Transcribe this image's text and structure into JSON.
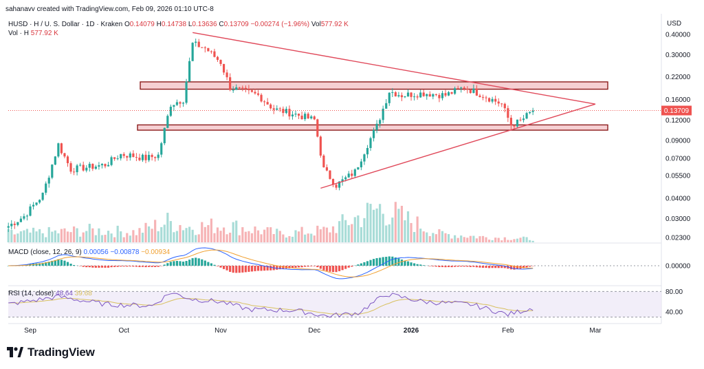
{
  "header": {
    "credit": "sahanavv created with TradingView.com, Feb 09, 2026 01:10 UTC-8",
    "symbol": "HUSD · H / U. S. Dollar · 1D · Kraken",
    "o_label": "O",
    "o_value": "0.14079",
    "h_label": "H",
    "h_value": "0.14738",
    "l_label": "L",
    "l_value": "0.13636",
    "c_label": "C",
    "c_value": "0.13709",
    "change": "−0.00274 (−1.96%)",
    "vol_label": "Vol",
    "vol_value": "577.92 K",
    "vol_h_label": "Vol · H",
    "vol_h_value": "577.92 K"
  },
  "macd": {
    "label": "MACD (close, 12, 26, 9)",
    "v1": "0.00056",
    "v2": "−0.00878",
    "v3": "−0.00934",
    "tick": "0.00000",
    "colors": {
      "macd": "#2962ff",
      "signal": "#f0a030",
      "hist_up": "#26a69a",
      "hist_down": "#ef5350"
    }
  },
  "rsi": {
    "label": "RSI (14, close)",
    "v1": "48.64",
    "v2": "39.68",
    "ticks": [
      "80.00",
      "40.00"
    ],
    "colors": {
      "rsi": "#7e57c2",
      "ma": "#d8c060"
    }
  },
  "logo": {
    "text": "TradingView",
    "icon": "tradingview-logo-icon"
  },
  "colors": {
    "up": "#26a69a",
    "down": "#ef5350",
    "zone": "#f6d0d3",
    "zone_border": "#8b1a1a",
    "trendline": "#e0495a"
  },
  "chart_data": {
    "type": "candlestick",
    "currency": "USD",
    "scale": "log",
    "last_price": "0.13709",
    "y_ticks": [
      "0.40000",
      "0.30000",
      "0.22000",
      "0.16000",
      "0.12000",
      "0.09000",
      "0.07000",
      "0.05500",
      "0.04000",
      "0.03000",
      "0.02300"
    ],
    "x_ticks": [
      "Sep",
      "Oct",
      "Nov",
      "Dec",
      "2026",
      "Feb",
      "Mar"
    ],
    "zones": [
      {
        "from": 0.185,
        "to": 0.205
      },
      {
        "from": 0.104,
        "to": 0.112
      }
    ],
    "triangle": {
      "upper": [
        [
          "Oct 23",
          0.41
        ],
        [
          "Mar 01",
          0.15
        ]
      ],
      "lower": [
        [
          "Dec 03",
          0.046
        ],
        [
          "Mar 01",
          0.15
        ]
      ]
    },
    "price_path": [
      [
        "Aug 25",
        0.027
      ],
      [
        "Aug 30",
        0.031
      ],
      [
        "Sep 05",
        0.042
      ],
      [
        "Sep 10",
        0.085
      ],
      [
        "Sep 14",
        0.06
      ],
      [
        "Sep 20",
        0.062
      ],
      [
        "Sep 25",
        0.064
      ],
      [
        "Sep 30",
        0.074
      ],
      [
        "Oct 03",
        0.073
      ],
      [
        "Oct 08",
        0.07
      ],
      [
        "Oct 12",
        0.073
      ],
      [
        "Oct 16",
        0.15
      ],
      [
        "Oct 20",
        0.16
      ],
      [
        "Oct 23",
        0.35
      ],
      [
        "Oct 27",
        0.33
      ],
      [
        "Nov 01",
        0.27
      ],
      [
        "Nov 04",
        0.19
      ],
      [
        "Nov 08",
        0.18
      ],
      [
        "Nov 13",
        0.17
      ],
      [
        "Nov 18",
        0.14
      ],
      [
        "Nov 25",
        0.13
      ],
      [
        "Dec 01",
        0.12
      ],
      [
        "Dec 04",
        0.06
      ],
      [
        "Dec 08",
        0.048
      ],
      [
        "Dec 14",
        0.058
      ],
      [
        "Dec 18",
        0.085
      ],
      [
        "Dec 21",
        0.11
      ],
      [
        "Dec 25",
        0.18
      ],
      [
        "Dec 29",
        0.17
      ],
      [
        "Jan 05",
        0.175
      ],
      [
        "Jan 12",
        0.17
      ],
      [
        "Jan 18",
        0.19
      ],
      [
        "Jan 24",
        0.17
      ],
      [
        "Jan 30",
        0.15
      ],
      [
        "Feb 02",
        0.112
      ],
      [
        "Feb 05",
        0.118
      ],
      [
        "Feb 09",
        0.137
      ]
    ],
    "volume_path": [
      [
        "Aug 25",
        0.25
      ],
      [
        "Sep 10",
        0.3
      ],
      [
        "Sep 20",
        0.35
      ],
      [
        "Oct 05",
        0.3
      ],
      [
        "Oct 15",
        0.6
      ],
      [
        "Oct 22",
        0.45
      ],
      [
        "Nov 03",
        0.5
      ],
      [
        "Nov 20",
        0.25
      ],
      [
        "Dec 05",
        0.35
      ],
      [
        "Dec 22",
        1.0
      ],
      [
        "Jan 10",
        0.25
      ],
      [
        "Jan 25",
        0.15
      ],
      [
        "Feb 09",
        0.1
      ]
    ],
    "rsi_path": [
      [
        "Aug 25",
        55
      ],
      [
        "Sep 10",
        70
      ],
      [
        "Sep 25",
        55
      ],
      [
        "Oct 10",
        52
      ],
      [
        "Oct 16",
        78
      ],
      [
        "Oct 23",
        65
      ],
      [
        "Nov 01",
        60
      ],
      [
        "Nov 10",
        45
      ],
      [
        "Nov 25",
        43
      ],
      [
        "Dec 05",
        32
      ],
      [
        "Dec 15",
        38
      ],
      [
        "Dec 24",
        75
      ],
      [
        "Jan 05",
        60
      ],
      [
        "Jan 20",
        55
      ],
      [
        "Feb 01",
        35
      ],
      [
        "Feb 09",
        48
      ]
    ]
  }
}
